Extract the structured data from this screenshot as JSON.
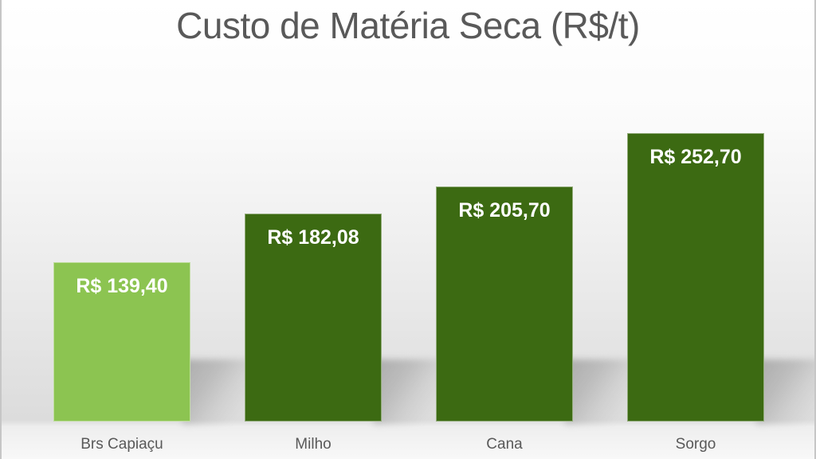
{
  "chart_data": {
    "type": "bar",
    "title": "Custo de Matéria Seca (R$/t)",
    "categories": [
      "Brs Capiaçu",
      "Milho",
      "Cana",
      "Sorgo"
    ],
    "values": [
      139.4,
      182.08,
      205.7,
      252.7
    ],
    "value_labels": [
      "R$ 139,40",
      "R$ 182,08",
      "R$ 205,70",
      "R$ 252,70"
    ],
    "currency_unit": "R$/t",
    "ylim": [
      0,
      252.7
    ],
    "bar_colors": [
      "#8CC451",
      "#3C6A12",
      "#3C6A12",
      "#3C6A12"
    ],
    "legend": "none",
    "gridlines": false,
    "axes_visible": false,
    "data_label_position": "inside-end"
  },
  "style": {
    "title_color": "#595959",
    "category_label_color": "#595959",
    "data_label_color": "#FFFFFF",
    "highlight_bar_color": "#8CC451",
    "default_bar_color": "#3C6A12",
    "background_top": "#FFFFFF",
    "background_wall_bottom": "#DCDCDC",
    "background_floor": "#F8F8F8"
  }
}
